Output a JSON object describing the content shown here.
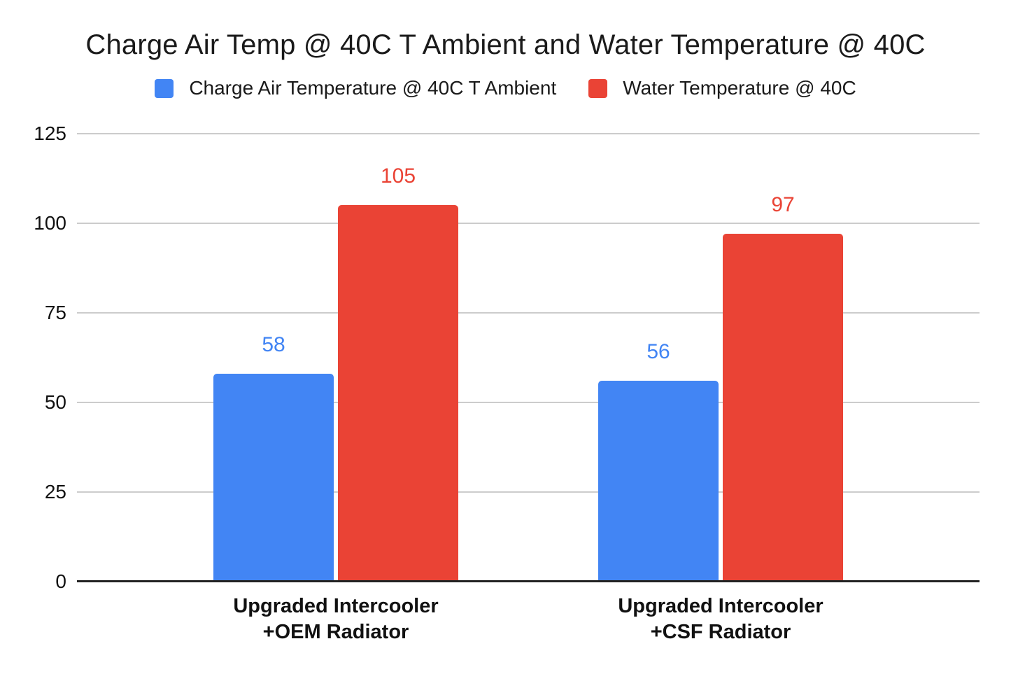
{
  "chart_data": {
    "type": "bar",
    "title": "Charge Air Temp @ 40C T Ambient and Water Temperature @ 40C",
    "categories": [
      "Upgraded Intercooler\n+OEM Radiator",
      "Upgraded Intercooler\n+CSF Radiator"
    ],
    "series": [
      {
        "name": "Charge Air Temperature @ 40C T Ambient",
        "color": "#4285F4",
        "values": [
          58,
          56
        ]
      },
      {
        "name": "Water Temperature @ 40C",
        "color": "#EA4335",
        "values": [
          105,
          97
        ]
      }
    ],
    "ylim": [
      0,
      125
    ],
    "yticks": [
      0,
      25,
      50,
      75,
      100,
      125
    ],
    "grid": true,
    "legend_position": "top",
    "data_labels": true,
    "colors": {
      "grid": "#cccccc",
      "axis": "#222222",
      "text": "#1a1a1a"
    }
  }
}
